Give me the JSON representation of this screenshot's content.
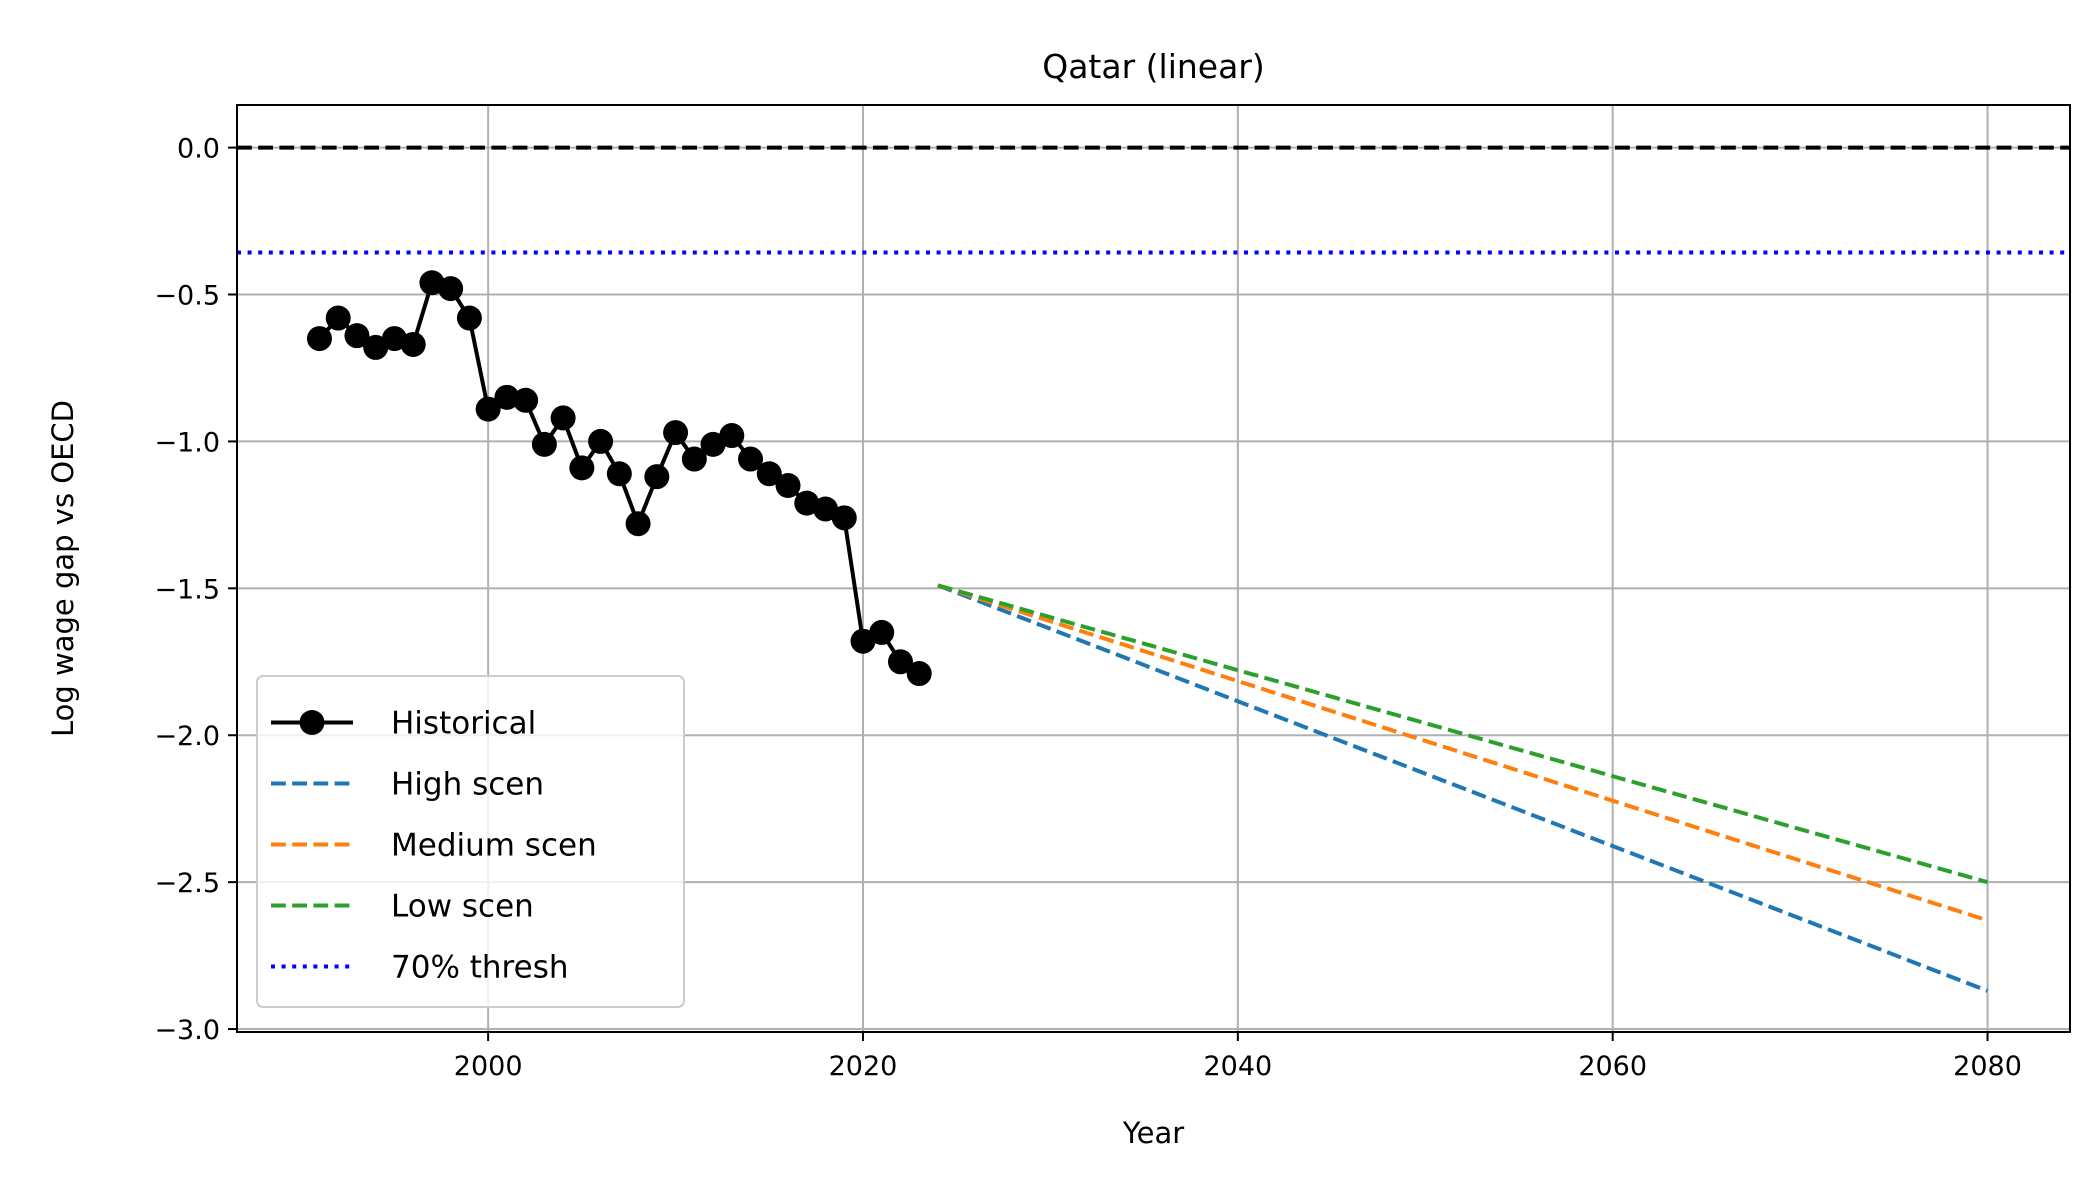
{
  "chart_data": {
    "type": "line",
    "title": "Qatar (linear)",
    "xlabel": "Year",
    "ylabel": "Log wage gap vs OECD",
    "xlim": [
      1986.6,
      2084.4
    ],
    "ylim": [
      -3.01,
      0.145
    ],
    "x_ticks": [
      2000,
      2020,
      2040,
      2060,
      2080
    ],
    "y_ticks": [
      0.0,
      -0.5,
      -1.0,
      -1.5,
      -2.0,
      -2.5,
      -3.0
    ],
    "x_tick_labels": [
      "2000",
      "2020",
      "2040",
      "2060",
      "2080"
    ],
    "y_tick_labels": [
      "0.0",
      "−0.5",
      "−1.0",
      "−1.5",
      "−2.0",
      "−2.5",
      "−3.0"
    ],
    "grid": true,
    "legend_position": "lower-left",
    "reference_lines": [
      {
        "y": 0.0,
        "color": "#000000",
        "style": "dashed"
      },
      {
        "y": -0.357,
        "color": "#0000ff",
        "style": "dotted",
        "name": "70% thresh"
      }
    ],
    "series": [
      {
        "name": "Historical",
        "color": "#000000",
        "style": "solid-marker",
        "x": [
          1991,
          1992,
          1993,
          1994,
          1995,
          1996,
          1997,
          1998,
          1999,
          2000,
          2001,
          2002,
          2003,
          2004,
          2005,
          2006,
          2007,
          2008,
          2009,
          2010,
          2011,
          2012,
          2013,
          2014,
          2015,
          2016,
          2017,
          2018,
          2019,
          2020,
          2021,
          2022,
          2023
        ],
        "y": [
          -0.65,
          -0.58,
          -0.64,
          -0.68,
          -0.65,
          -0.67,
          -0.46,
          -0.48,
          -0.58,
          -0.89,
          -0.85,
          -0.86,
          -1.01,
          -0.92,
          -1.09,
          -1.0,
          -1.11,
          -1.28,
          -1.12,
          -0.97,
          -1.06,
          -1.01,
          -0.98,
          -1.06,
          -1.11,
          -1.15,
          -1.21,
          -1.23,
          -1.26,
          -1.68,
          -1.65,
          -1.75,
          -1.79
        ]
      },
      {
        "name": "High scen",
        "color": "#1f77b4",
        "style": "dashed",
        "x": [
          2024,
          2080
        ],
        "y": [
          -1.49,
          -2.87
        ]
      },
      {
        "name": "Medium scen",
        "color": "#ff7f0e",
        "style": "dashed",
        "x": [
          2024,
          2080
        ],
        "y": [
          -1.49,
          -2.63
        ]
      },
      {
        "name": "Low scen",
        "color": "#2ca02c",
        "style": "dashed",
        "x": [
          2024,
          2080
        ],
        "y": [
          -1.49,
          -2.5
        ]
      }
    ]
  }
}
